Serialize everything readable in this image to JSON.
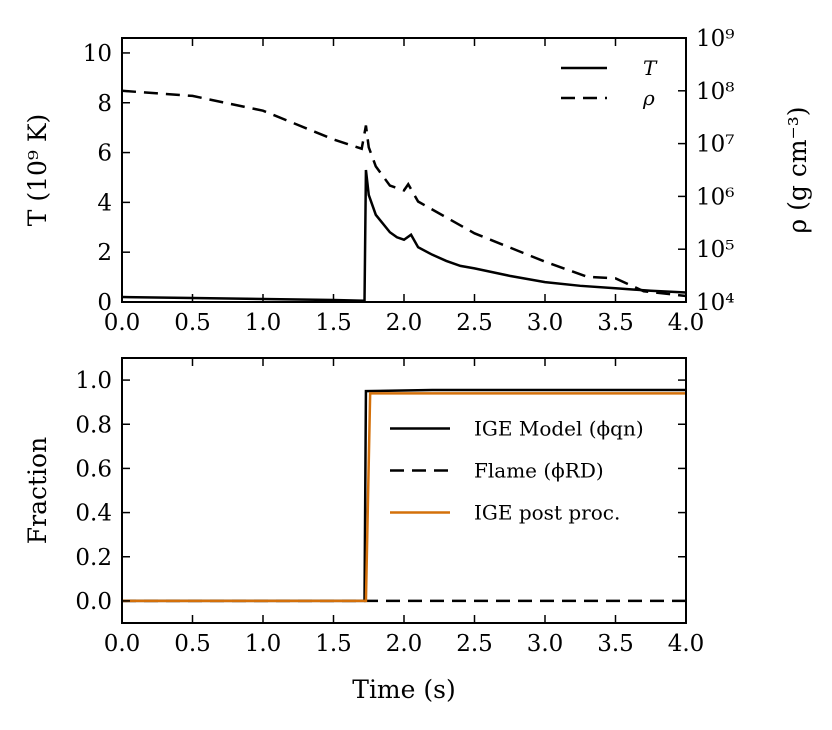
{
  "chart_data": [
    {
      "type": "line",
      "ylabel": "T (10⁹ K)",
      "y2label": "ρ (g cm⁻³)",
      "xlim": [
        0,
        4
      ],
      "xticks": [
        {
          "value": 0,
          "label": "0.0"
        },
        0.5,
        {
          "value": 1,
          "label": "1.0"
        },
        1.5,
        {
          "value": 2,
          "label": "2.0"
        },
        2.5,
        {
          "value": 3,
          "label": "3.0"
        },
        3.5,
        {
          "value": 4,
          "label": "4.0"
        }
      ],
      "ylim": [
        0,
        10.6
      ],
      "yticks": [
        0,
        2,
        4,
        6,
        8,
        10
      ],
      "y2lim": [
        10000,
        1000000000
      ],
      "y2log": true,
      "y2ticks": [
        {
          "value": 10000,
          "label": "10⁴"
        },
        {
          "value": 100000,
          "label": "10⁵"
        },
        {
          "value": 1000000,
          "label": "10⁶"
        },
        {
          "value": 10000000,
          "label": "10⁷"
        },
        {
          "value": 100000000,
          "label": "10⁸"
        },
        {
          "value": 1000000000,
          "label": "10⁹"
        }
      ],
      "legend": "upper right",
      "series": [
        {
          "name": "T",
          "color": "#000000",
          "linestyle": "solid",
          "x": [
            0,
            0.5,
            1.0,
            1.5,
            1.72,
            1.73,
            1.75,
            1.8,
            1.9,
            1.95,
            2.0,
            2.05,
            2.1,
            2.2,
            2.3,
            2.4,
            2.5,
            2.75,
            3.0,
            3.25,
            3.5,
            3.75,
            4.0
          ],
          "values": [
            0.2,
            0.16,
            0.12,
            0.08,
            0.05,
            5.3,
            4.3,
            3.5,
            2.8,
            2.6,
            2.5,
            2.7,
            2.2,
            1.9,
            1.65,
            1.45,
            1.35,
            1.05,
            0.8,
            0.65,
            0.55,
            0.45,
            0.38
          ]
        },
        {
          "name": "ρ",
          "color": "#000000",
          "linestyle": "dashed",
          "axis": "y2",
          "x": [
            0,
            0.5,
            1.0,
            1.5,
            1.7,
            1.73,
            1.75,
            1.8,
            1.9,
            2.0,
            2.03,
            2.1,
            2.5,
            3.0,
            3.3,
            3.5,
            3.7,
            4.0
          ],
          "values": [
            100000000,
            80000000,
            42000000,
            12000000,
            8000000,
            22000000,
            8500000,
            3700000,
            1600000,
            1300000,
            1700000,
            800000,
            200000,
            58000,
            30000,
            28000,
            16000,
            13000
          ]
        }
      ]
    },
    {
      "type": "line",
      "xlabel": "Time (s)",
      "ylabel": "Fraction",
      "xlim": [
        0,
        4
      ],
      "xticks": [
        {
          "value": 0,
          "label": "0.0"
        },
        0.5,
        {
          "value": 1,
          "label": "1.0"
        },
        1.5,
        {
          "value": 2,
          "label": "2.0"
        },
        2.5,
        {
          "value": 3,
          "label": "3.0"
        },
        3.5,
        {
          "value": 4,
          "label": "4.0"
        }
      ],
      "ylim": [
        -0.1,
        1.1
      ],
      "yticks": [
        {
          "value": 0,
          "label": "0.0"
        },
        0.2,
        0.4,
        0.6,
        0.8,
        {
          "value": 1,
          "label": "1.0"
        }
      ],
      "legend": "center right",
      "series": [
        {
          "name": "IGE Model (ϕqn)",
          "color": "#000000",
          "linestyle": "solid",
          "x": [
            0,
            1.72,
            1.73,
            2.2,
            4.0
          ],
          "values": [
            0,
            0,
            0.95,
            0.955,
            0.955
          ]
        },
        {
          "name": "Flame (ϕRD)",
          "color": "#000000",
          "linestyle": "dashed",
          "x": [
            0,
            4.0
          ],
          "values": [
            0,
            0
          ]
        },
        {
          "name": "IGE post proc.",
          "color": "#d4700a",
          "linestyle": "solid",
          "x": [
            0,
            1.73,
            1.76,
            4.0
          ],
          "values": [
            0,
            0,
            0.94,
            0.94
          ]
        }
      ]
    }
  ]
}
